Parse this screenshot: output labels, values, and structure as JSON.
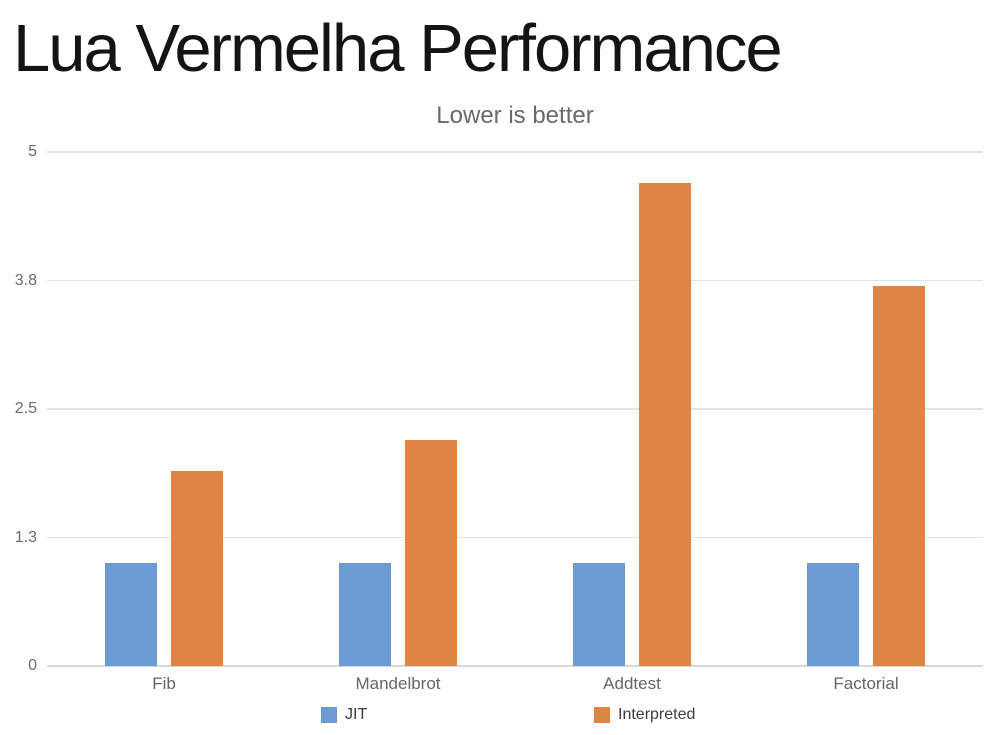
{
  "page": {
    "title": "Lua Vermelha Performance",
    "subtitle": "Lower is better"
  },
  "chart_data": {
    "type": "bar",
    "title": "Lua Vermelha Performance",
    "subtitle": "Lower is better",
    "categories": [
      "Fib",
      "Mandelbrot",
      "Addtest",
      "Factorial"
    ],
    "series": [
      {
        "name": "JIT",
        "color": "#6b9bd2",
        "values": [
          1.0,
          1.0,
          1.0,
          1.0
        ]
      },
      {
        "name": "Interpreted",
        "color": "#e08445",
        "values": [
          1.9,
          2.2,
          4.7,
          3.7
        ]
      }
    ],
    "ylim": [
      0,
      5
    ],
    "yticks": [
      {
        "value": 0,
        "label": "0"
      },
      {
        "value": 1.25,
        "label": "1.3"
      },
      {
        "value": 2.5,
        "label": "2.5"
      },
      {
        "value": 3.75,
        "label": "3.8"
      },
      {
        "value": 5,
        "label": "5"
      }
    ],
    "grid": "horizontal",
    "legend_position": "bottom",
    "colors": {
      "grid": "#e2e2e2",
      "axis_text": "#6b6b6b",
      "category_text": "#666666",
      "legend_text": "#3d3d3d",
      "title_text": "#141414",
      "subtitle_text": "#6a6a6a"
    }
  }
}
